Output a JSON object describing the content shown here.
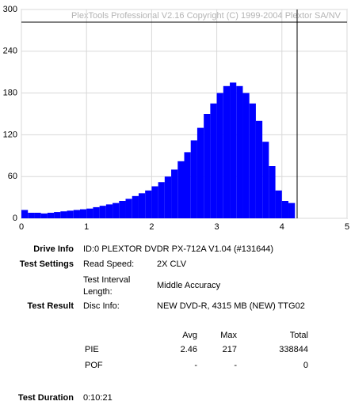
{
  "chart_data": {
    "type": "bar",
    "annotation": "PlexTools Professional V2.16 Copyright (C) 1999-2004 Plextor SA/NV",
    "x": [
      0.05,
      0.15,
      0.25,
      0.35,
      0.45,
      0.55,
      0.65,
      0.75,
      0.85,
      0.95,
      1.05,
      1.15,
      1.25,
      1.35,
      1.45,
      1.55,
      1.65,
      1.75,
      1.85,
      1.95,
      2.05,
      2.15,
      2.25,
      2.35,
      2.45,
      2.55,
      2.65,
      2.75,
      2.85,
      2.95,
      3.05,
      3.15,
      3.25,
      3.35,
      3.45,
      3.55,
      3.65,
      3.75,
      3.85,
      3.95,
      4.05,
      4.15
    ],
    "values": [
      12,
      8,
      8,
      7,
      8,
      9,
      10,
      11,
      12,
      13,
      14,
      16,
      18,
      20,
      22,
      25,
      28,
      32,
      36,
      40,
      46,
      52,
      60,
      70,
      82,
      95,
      112,
      130,
      150,
      165,
      180,
      190,
      195,
      190,
      180,
      165,
      140,
      110,
      75,
      40,
      25,
      22
    ],
    "color": "#0000ff",
    "xlim": [
      0,
      5
    ],
    "xticks": [
      0,
      1,
      2,
      3,
      4,
      5
    ],
    "ylim": [
      0,
      300
    ],
    "yticks": [
      0,
      60,
      120,
      180,
      240,
      300
    ],
    "grid": true
  },
  "report": {
    "drive_info": {
      "label": "Drive Info",
      "value": "ID:0 PLEXTOR DVDR PX-712A V1.04 (#131644)"
    },
    "test_settings": {
      "label": "Test Settings",
      "rows": [
        [
          "Read Speed:",
          "2X CLV"
        ],
        [
          "Test Interval Length:",
          "Middle Accuracy"
        ]
      ]
    },
    "test_result": {
      "label": "Test Result",
      "disc_label": "Disc Info:",
      "disc_value": "NEW DVD-R, 4315 MB (NEW) TTG02"
    },
    "stats": {
      "headers": [
        "Avg",
        "Max",
        "Total"
      ],
      "rows": [
        {
          "name": "PIE",
          "cells": [
            "2.46",
            "217",
            "338844"
          ]
        },
        {
          "name": "POF",
          "cells": [
            "-",
            "-",
            "0"
          ]
        }
      ]
    },
    "test_duration": {
      "label": "Test Duration",
      "value": "0:10:21"
    }
  }
}
